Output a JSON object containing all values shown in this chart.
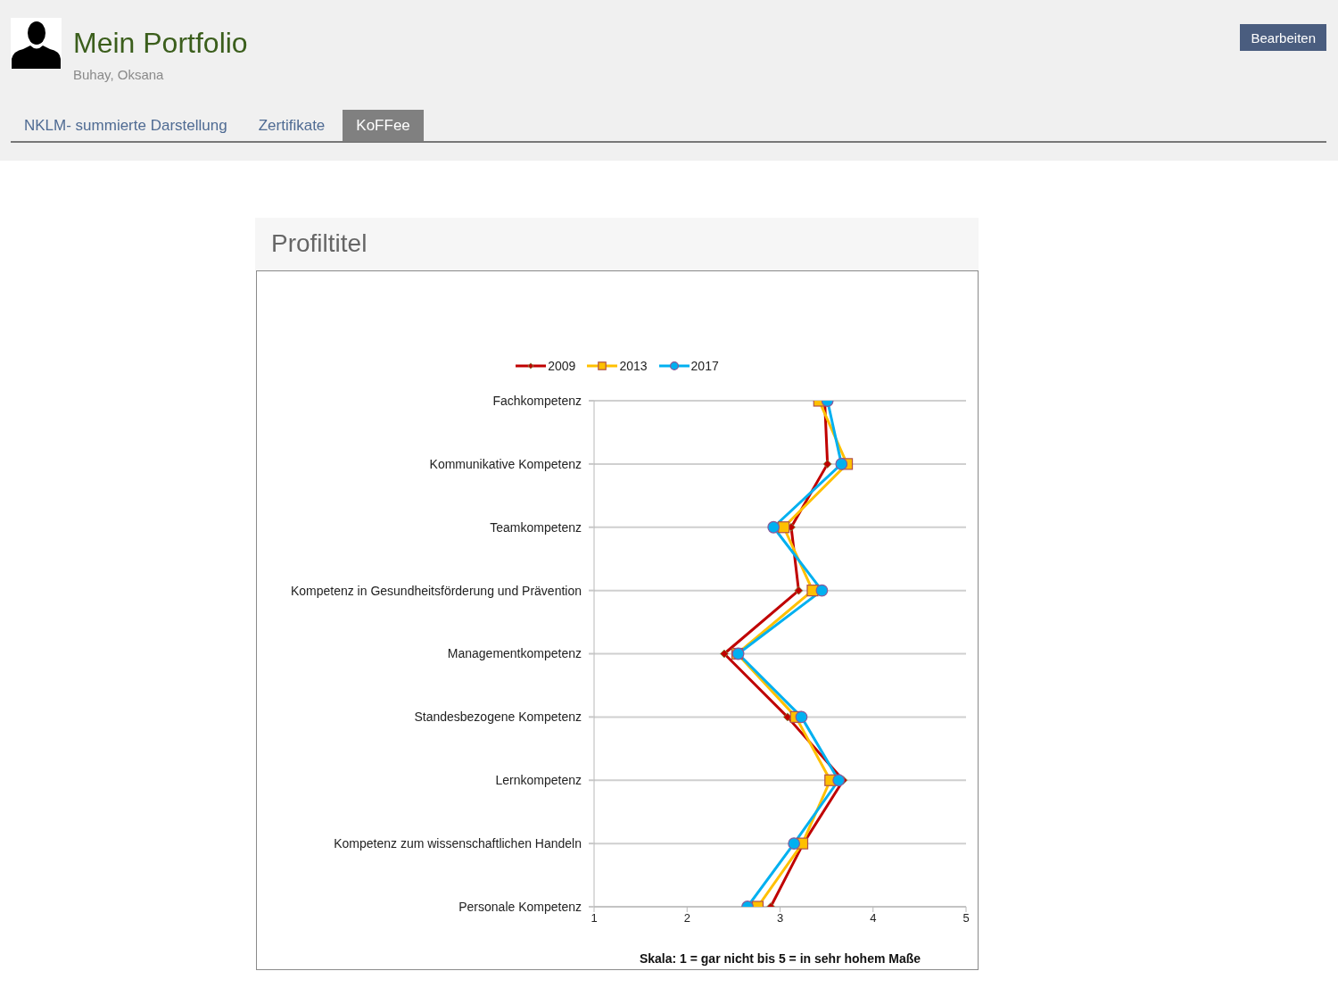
{
  "chart_data": {
    "type": "line",
    "orientation": "horizontal",
    "title": "Profiltitel",
    "xlabel": "Skala: 1 = gar nicht bis 5 = in sehr hohem Maße",
    "categories": [
      "Fachkompetenz",
      "Kommunikative Kompetenz",
      "Teamkompetenz",
      "Kompetenz in Gesundheitsförderung und Prävention",
      "Managementkompetenz",
      "Standesbezogene Kompetenz",
      "Lernkompetenz",
      "Kompetenz zum wissenschaftlichen Handeln",
      "Personale Kompetenz"
    ],
    "series": [
      {
        "name": "2009",
        "color": "#c00000",
        "marker": "diamond",
        "values": [
          3.48,
          3.51,
          3.12,
          3.2,
          2.4,
          3.08,
          3.68,
          3.25,
          2.9
        ]
      },
      {
        "name": "2013",
        "color": "#ffc000",
        "marker": "square",
        "values": [
          3.42,
          3.72,
          3.04,
          3.35,
          2.54,
          3.17,
          3.54,
          3.24,
          2.76
        ]
      },
      {
        "name": "2017",
        "color": "#00b0f0",
        "marker": "circle",
        "values": [
          3.51,
          3.66,
          2.93,
          3.45,
          2.55,
          3.23,
          3.63,
          3.15,
          2.65
        ]
      }
    ],
    "xlim": [
      1,
      5
    ],
    "xticks": [
      1,
      2,
      3,
      4,
      5
    ],
    "grid": "y",
    "legend": "top",
    "line_style": "solid",
    "annotations": [
      "Mein Portfolio",
      "Buhay, Oksana",
      "NKLM- summierte Darstellung",
      "Zertifikate",
      "KoFFee",
      "Bearbeiten"
    ]
  }
}
